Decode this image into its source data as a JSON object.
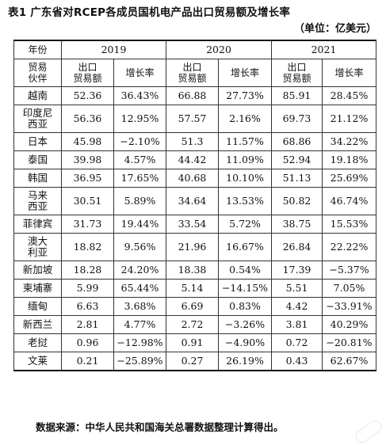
{
  "title": "表1  广东省对RCEP各成员国机电产品出口贸易额及增长率",
  "unit": "（单位：亿美元）",
  "header": {
    "corner": "年份",
    "years": [
      "2019",
      "2020",
      "2021"
    ],
    "partner_label": "贸易\n伙伴",
    "export_label": "出口\n贸易额",
    "growth_label": "增长率"
  },
  "rows": [
    {
      "country": "越南",
      "cells": [
        "52.36",
        "36.43%",
        "66.88",
        "27.73%",
        "85.91",
        "28.45%"
      ],
      "tall": false
    },
    {
      "country": "印度尼\n西亚",
      "cells": [
        "56.36",
        "12.95%",
        "57.57",
        "2.16%",
        "69.73",
        "21.12%"
      ],
      "tall": true
    },
    {
      "country": "日本",
      "cells": [
        "45.98",
        "−2.10%",
        "51.3",
        "11.57%",
        "68.86",
        "34.22%"
      ],
      "tall": false
    },
    {
      "country": "泰国",
      "cells": [
        "39.98",
        "4.57%",
        "44.42",
        "11.09%",
        "52.94",
        "19.18%"
      ],
      "tall": false
    },
    {
      "country": "韩国",
      "cells": [
        "36.95",
        "17.65%",
        "40.68",
        "10.10%",
        "51.13",
        "25.69%"
      ],
      "tall": false
    },
    {
      "country": "马来\n西亚",
      "cells": [
        "30.51",
        "5.89%",
        "34.64",
        "13.53%",
        "50.82",
        "46.74%"
      ],
      "tall": true
    },
    {
      "country": "菲律宾",
      "cells": [
        "31.73",
        "19.44%",
        "33.54",
        "5.72%",
        "38.75",
        "15.53%"
      ],
      "tall": false
    },
    {
      "country": "澳大\n利亚",
      "cells": [
        "18.82",
        "9.56%",
        "21.96",
        "16.67%",
        "26.84",
        "22.22%"
      ],
      "tall": true
    },
    {
      "country": "新加坡",
      "cells": [
        "18.28",
        "24.20%",
        "18.38",
        "0.54%",
        "17.39",
        "−5.37%"
      ],
      "tall": false
    },
    {
      "country": "柬埔寨",
      "cells": [
        "5.99",
        "65.44%",
        "5.14",
        "−14.15%",
        "5.51",
        "7.05%"
      ],
      "tall": false
    },
    {
      "country": "缅甸",
      "cells": [
        "6.63",
        "3.68%",
        "6.69",
        "0.83%",
        "4.42",
        "−33.91%"
      ],
      "tall": false
    },
    {
      "country": "新西兰",
      "cells": [
        "2.81",
        "4.77%",
        "2.72",
        "−3.26%",
        "3.81",
        "40.29%"
      ],
      "tall": false
    },
    {
      "country": "老挝",
      "cells": [
        "0.96",
        "−12.98%",
        "0.91",
        "−4.90%",
        "0.72",
        "−20.81%"
      ],
      "tall": false
    },
    {
      "country": "文莱",
      "cells": [
        "0.21",
        "−25.89%",
        "0.27",
        "26.19%",
        "0.43",
        "62.67%"
      ],
      "tall": false
    }
  ],
  "footnote": "数据来源：中华人民共和国海关总署数据整理计算得出。"
}
